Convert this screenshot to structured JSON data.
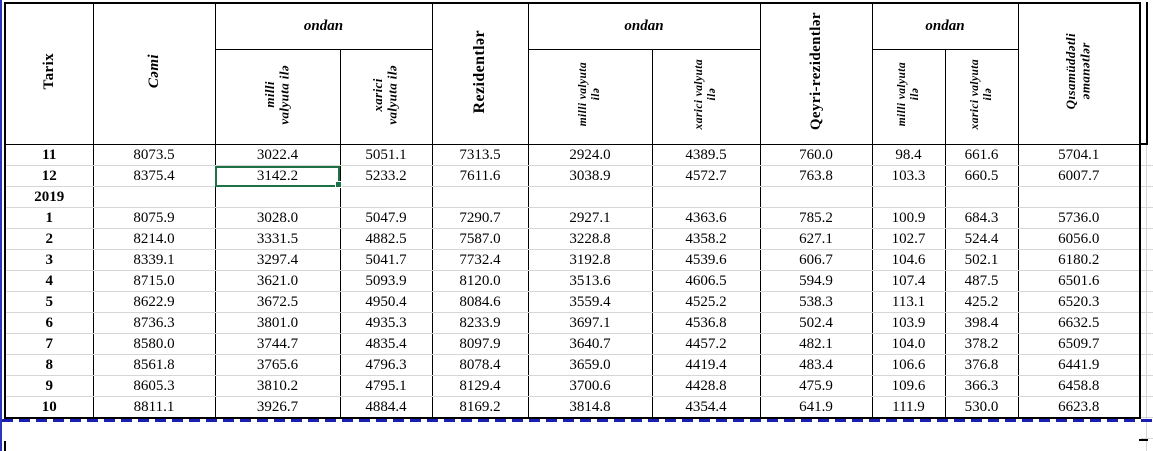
{
  "colors": {
    "selection": "#1e7145",
    "pagebreak": "#1b1fb1",
    "window_edge": "#2b35c0",
    "gridline": "#d6d6d6",
    "border": "#000000"
  },
  "table": {
    "header": {
      "tarix": "Tarix",
      "cami": "Cəmi",
      "ondan": "ondan",
      "milli_wide": "milli\nvalyuta ilə",
      "xarici_wide": "xarici\nvalyuta ilə",
      "rezidentlar": "Rezidentlər",
      "milli_narrow": "milli valyuta\nilə",
      "xarici_narrow": "xarici valyuta\nilə",
      "qeyri_rezidentlar": "Qeyri-rezidentlər",
      "qisamuddatli": "Qısamüddətli\nəmanətlər"
    },
    "selected_cell": {
      "row": 1,
      "col": 1
    },
    "rows": [
      {
        "label": "11",
        "values": [
          "8073.5",
          "3022.4",
          "5051.1",
          "7313.5",
          "2924.0",
          "4389.5",
          "760.0",
          "98.4",
          "661.6",
          "5704.1"
        ]
      },
      {
        "label": "12",
        "values": [
          "8375.4",
          "3142.2",
          "5233.2",
          "7611.6",
          "3038.9",
          "4572.7",
          "763.8",
          "103.3",
          "660.5",
          "6007.7"
        ]
      },
      {
        "label": "2019",
        "values": [
          "",
          "",
          "",
          "",
          "",
          "",
          "",
          "",
          "",
          ""
        ]
      },
      {
        "label": "1",
        "values": [
          "8075.9",
          "3028.0",
          "5047.9",
          "7290.7",
          "2927.1",
          "4363.6",
          "785.2",
          "100.9",
          "684.3",
          "5736.0"
        ]
      },
      {
        "label": "2",
        "values": [
          "8214.0",
          "3331.5",
          "4882.5",
          "7587.0",
          "3228.8",
          "4358.2",
          "627.1",
          "102.7",
          "524.4",
          "6056.0"
        ]
      },
      {
        "label": "3",
        "values": [
          "8339.1",
          "3297.4",
          "5041.7",
          "7732.4",
          "3192.8",
          "4539.6",
          "606.7",
          "104.6",
          "502.1",
          "6180.2"
        ]
      },
      {
        "label": "4",
        "values": [
          "8715.0",
          "3621.0",
          "5093.9",
          "8120.0",
          "3513.6",
          "4606.5",
          "594.9",
          "107.4",
          "487.5",
          "6501.6"
        ]
      },
      {
        "label": "5",
        "values": [
          "8622.9",
          "3672.5",
          "4950.4",
          "8084.6",
          "3559.4",
          "4525.2",
          "538.3",
          "113.1",
          "425.2",
          "6520.3"
        ]
      },
      {
        "label": "6",
        "values": [
          "8736.3",
          "3801.0",
          "4935.3",
          "8233.9",
          "3697.1",
          "4536.8",
          "502.4",
          "103.9",
          "398.4",
          "6632.5"
        ]
      },
      {
        "label": "7",
        "values": [
          "8580.0",
          "3744.7",
          "4835.4",
          "8097.9",
          "3640.7",
          "4457.2",
          "482.1",
          "104.0",
          "378.2",
          "6509.7"
        ]
      },
      {
        "label": "8",
        "values": [
          "8561.8",
          "3765.6",
          "4796.3",
          "8078.4",
          "3659.0",
          "4419.4",
          "483.4",
          "106.6",
          "376.8",
          "6441.9"
        ]
      },
      {
        "label": "9",
        "values": [
          "8605.3",
          "3810.2",
          "4795.1",
          "8129.4",
          "3700.6",
          "4428.8",
          "475.9",
          "109.6",
          "366.3",
          "6458.8"
        ]
      },
      {
        "label": "10",
        "values": [
          "8811.1",
          "3926.7",
          "4884.4",
          "8169.2",
          "3814.8",
          "4354.4",
          "641.9",
          "111.9",
          "530.0",
          "6623.8"
        ]
      }
    ]
  }
}
